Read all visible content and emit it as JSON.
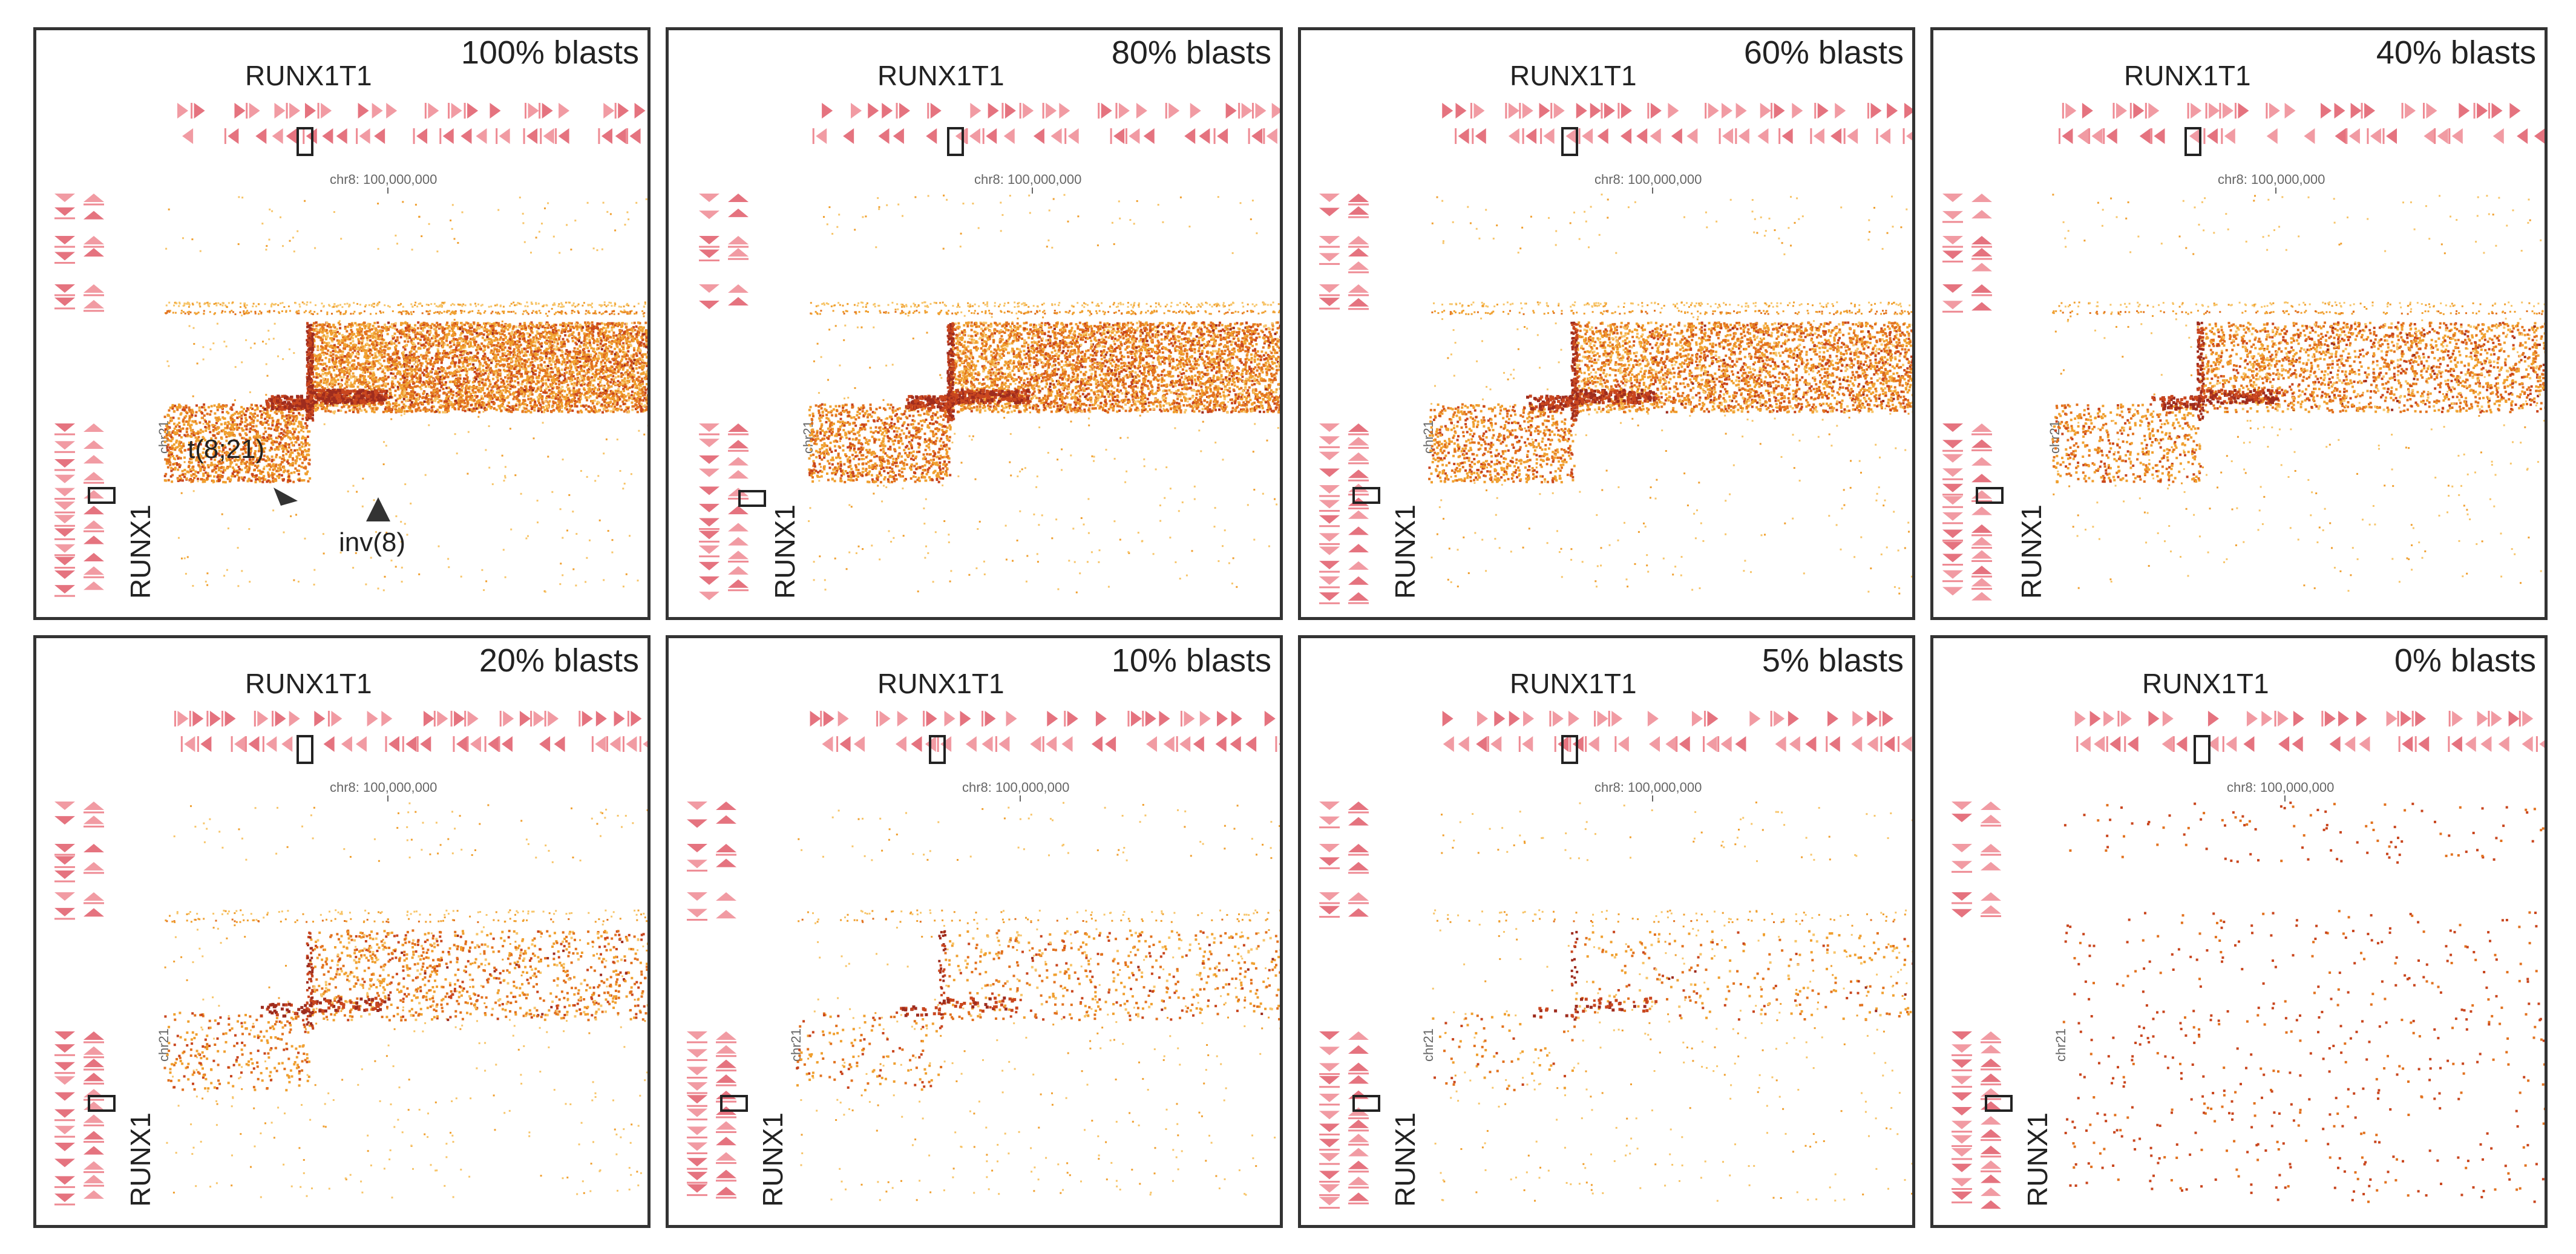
{
  "figure": {
    "colors": {
      "light": "#f7c56a",
      "mid": "#f0a030",
      "strong": "#e2721f",
      "dark": "#c9461e",
      "darkest": "#9e2c1e",
      "gene_track": "#ee8a93",
      "gene_track_dark": "#e05a68",
      "frame": "#333333",
      "text": "#222222",
      "muted": "#666666"
    },
    "labels": {
      "top_gene": "RUNX1T1",
      "left_gene": "RUNX1",
      "coordinate": "chr8: 100,000,000",
      "chrom_left": "chr21",
      "tick_icon": "tick-mark-icon"
    },
    "annotations": {
      "translocation": "t(8;21)",
      "inversion": "inv(8)",
      "arrow_icon": "arrowhead-icon"
    },
    "panels": [
      {
        "label": "100% blasts",
        "blast_fraction": 1.0
      },
      {
        "label": "80% blasts",
        "blast_fraction": 0.8
      },
      {
        "label": "60% blasts",
        "blast_fraction": 0.6
      },
      {
        "label": "40% blasts",
        "blast_fraction": 0.4
      },
      {
        "label": "20% blasts",
        "blast_fraction": 0.2
      },
      {
        "label": "10% blasts",
        "blast_fraction": 0.1
      },
      {
        "label": "5% blasts",
        "blast_fraction": 0.05
      },
      {
        "label": "0% blasts",
        "blast_fraction": 0.0
      }
    ]
  }
}
